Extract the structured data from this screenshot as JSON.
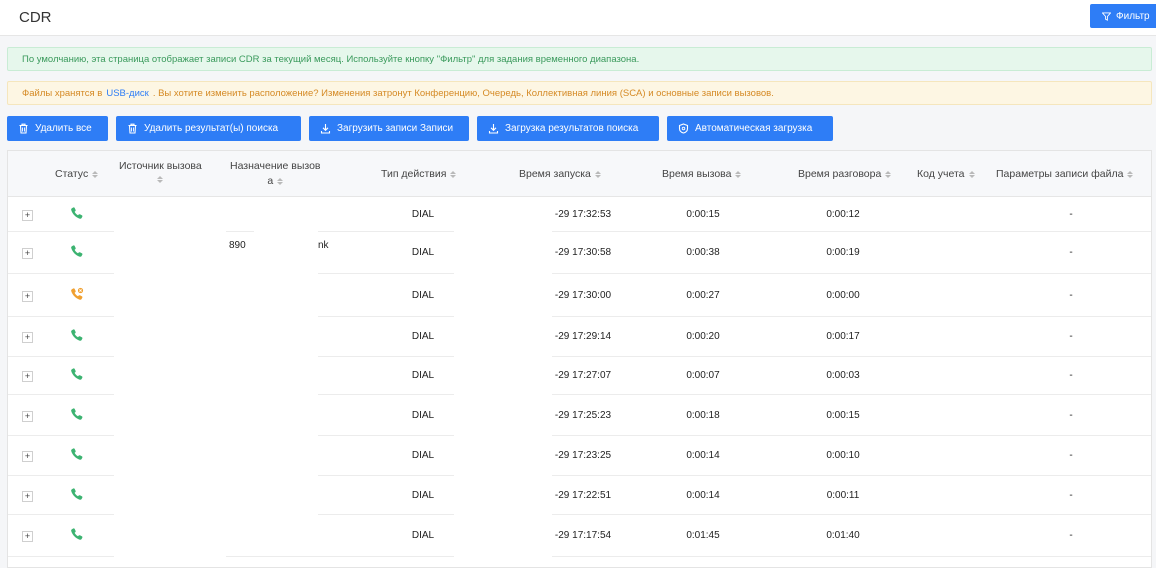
{
  "header": {
    "title": "CDR",
    "filter_label": "Фильтр"
  },
  "alerts": {
    "info": "По умолчанию, эта страница отображает записи CDR за текущий месяц. Используйте кнопку \"Фильтр\" для задания временного диапазона.",
    "storage_prefix": "Файлы хранятся в",
    "storage_link": "USB-диск",
    "storage_suffix": ". Вы хотите изменить расположение? Изменения затронут Конференцию, Очередь, Коллективная линия (SCA) и основные записи вызовов."
  },
  "toolbar": {
    "delete_all": "Удалить все",
    "delete_results": "Удалить результат(ы) поиска",
    "download_records": "Загрузить записи Записи",
    "download_results": "Загрузка результатов поиска",
    "auto_download": "Автоматическая загрузка"
  },
  "colors": {
    "accent": "#2e7df6",
    "answered": "#3cb371",
    "missed": "#f0a030"
  },
  "table": {
    "headers": {
      "status": "Статус",
      "source": "Источник вызова",
      "destination_1": "Назначение вызов",
      "destination_2": "а",
      "action": "Тип действия",
      "start_time": "Время запуска",
      "call_time": "Время вызова",
      "talk_time": "Время разговора",
      "account_code": "Код учета",
      "record_params": "Параметры записи файла"
    },
    "rows": [
      {
        "status": "phone-answered-icon",
        "destination": "",
        "action": "DIAL",
        "start": "-29 17:32:53",
        "call": "0:00:15",
        "talk": "0:00:12",
        "record": "-"
      },
      {
        "status": "phone-answered-icon",
        "destination": "890",
        "destination_tail": "nk",
        "action": "DIAL",
        "start": "-29 17:30:58",
        "call": "0:00:38",
        "talk": "0:00:19",
        "record": "-"
      },
      {
        "status": "phone-missed-icon",
        "destination": "",
        "action": "DIAL",
        "start": "-29 17:30:00",
        "call": "0:00:27",
        "talk": "0:00:00",
        "record": "-"
      },
      {
        "status": "phone-answered-icon",
        "destination": "",
        "action": "DIAL",
        "start": "-29 17:29:14",
        "call": "0:00:20",
        "talk": "0:00:17",
        "record": "-"
      },
      {
        "status": "phone-answered-icon",
        "destination": "",
        "action": "DIAL",
        "start": "-29 17:27:07",
        "call": "0:00:07",
        "talk": "0:00:03",
        "record": "-"
      },
      {
        "status": "phone-answered-icon",
        "destination": "",
        "action": "DIAL",
        "start": "-29 17:25:23",
        "call": "0:00:18",
        "talk": "0:00:15",
        "record": "-"
      },
      {
        "status": "phone-answered-icon",
        "destination": "",
        "action": "DIAL",
        "start": "-29 17:23:25",
        "call": "0:00:14",
        "talk": "0:00:10",
        "record": "-"
      },
      {
        "status": "phone-answered-icon",
        "destination": "",
        "action": "DIAL",
        "start": "-29 17:22:51",
        "call": "0:00:14",
        "talk": "0:00:11",
        "record": "-"
      },
      {
        "status": "phone-answered-icon",
        "destination": "",
        "action": "DIAL",
        "start": "-29 17:17:54",
        "call": "0:01:45",
        "talk": "0:01:40",
        "record": "-"
      }
    ],
    "expand_symbol": "+"
  }
}
